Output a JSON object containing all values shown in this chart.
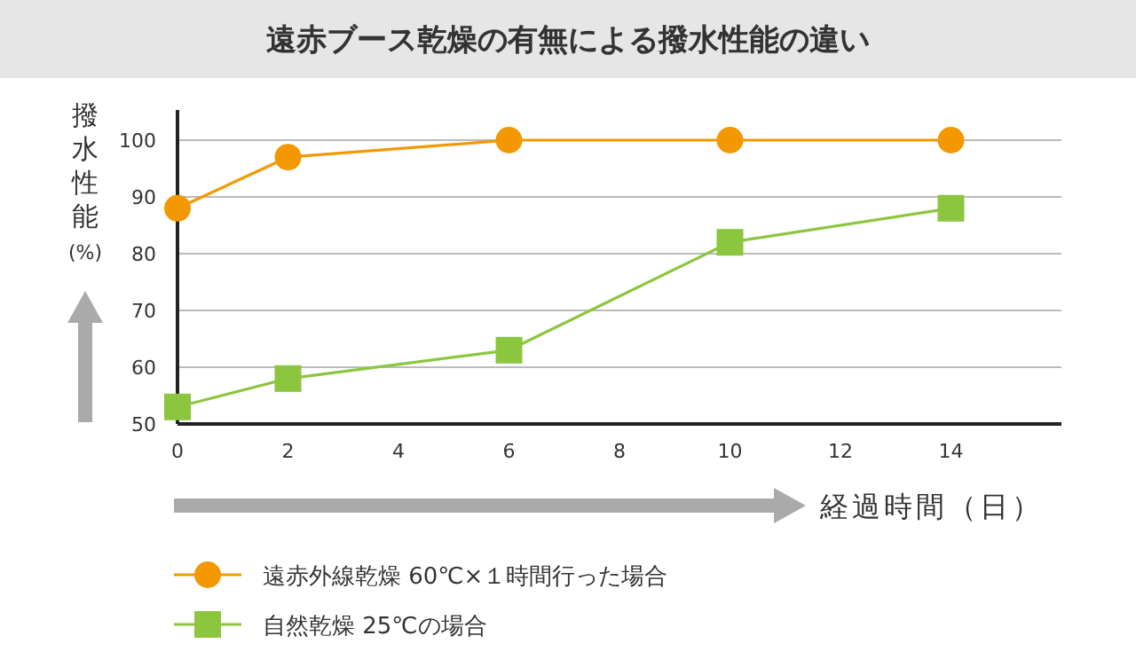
{
  "chart_data": {
    "type": "line",
    "title": "遠赤ブース乾燥の有無による撥水性能の違い",
    "ylabel": "撥水性能(%)",
    "xlabel": "経過時間（日）",
    "x": [
      0,
      2,
      6,
      10,
      14
    ],
    "xlim": [
      0,
      16
    ],
    "xticks": [
      0,
      2,
      4,
      6,
      8,
      10,
      12,
      14
    ],
    "ylim": [
      50,
      100
    ],
    "yticks": [
      50,
      60,
      70,
      80,
      90,
      100
    ],
    "grid": "y",
    "legend": "bottom left",
    "series": [
      {
        "name": "遠赤外線乾燥 60℃×１時間行った場合",
        "color": "#f39800",
        "marker": "circle",
        "values": [
          88,
          97,
          100,
          100,
          100
        ]
      },
      {
        "name": "自然乾燥 25℃の場合",
        "color": "#8cc63f",
        "marker": "square",
        "values": [
          53,
          58,
          63,
          82,
          88
        ]
      }
    ]
  }
}
